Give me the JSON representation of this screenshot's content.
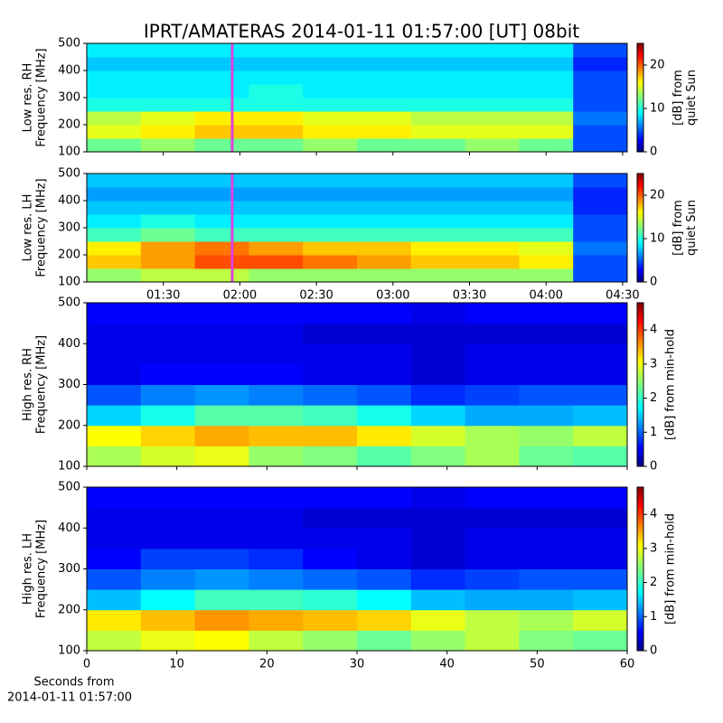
{
  "chart_data": [
    {
      "type": "heatmap",
      "title": "IPRT/AMATERAS 2014-01-11 01:57:00 [UT]   08bit",
      "ylabel": [
        "Low res. RH",
        "Frequency [MHz]"
      ],
      "ylim": [
        100,
        500
      ],
      "yticks": [
        100,
        200,
        300,
        400,
        500
      ],
      "xlim": [
        60,
        271.8
      ],
      "colormap": "jet",
      "clim": [
        0,
        25
      ],
      "cticks": [
        0,
        10,
        20
      ],
      "clabel": [
        "[dB] from",
        "quiet Sun"
      ],
      "marker_x": 117,
      "marker_color": "#e040e0",
      "z": [
        [
          12,
          13,
          12,
          12,
          13,
          12,
          12,
          13,
          12,
          5
        ],
        [
          15,
          16,
          17,
          17,
          16,
          16,
          15,
          15,
          15,
          5
        ],
        [
          14,
          15,
          16,
          16,
          15,
          15,
          14,
          14,
          14,
          6
        ],
        [
          10,
          10,
          10,
          10,
          10,
          10,
          10,
          10,
          10,
          5
        ],
        [
          9,
          9,
          9,
          10,
          9,
          9,
          9,
          9,
          9,
          5
        ],
        [
          9,
          9,
          9,
          9,
          9,
          9,
          9,
          9,
          9,
          5
        ],
        [
          8,
          8,
          8,
          8,
          8,
          8,
          8,
          8,
          8,
          4
        ],
        [
          9,
          9,
          9,
          9,
          9,
          9,
          9,
          9,
          9,
          5
        ]
      ]
    },
    {
      "type": "heatmap",
      "ylabel": [
        "Low res. LH",
        "Frequency [MHz]"
      ],
      "ylim": [
        100,
        500
      ],
      "yticks": [
        100,
        200,
        300,
        400,
        500
      ],
      "xlim": [
        60,
        271.8
      ],
      "xticks": [
        {
          "value": 90,
          "label": "01:30"
        },
        {
          "value": 120,
          "label": "02:00"
        },
        {
          "value": 150,
          "label": "02:30"
        },
        {
          "value": 180,
          "label": "03:00"
        },
        {
          "value": 210,
          "label": "03:30"
        },
        {
          "value": 240,
          "label": "04:00"
        },
        {
          "value": 270,
          "label": "04:30"
        }
      ],
      "colormap": "jet",
      "clim": [
        0,
        25
      ],
      "cticks": [
        0,
        10,
        20
      ],
      "clabel": [
        "[dB] from",
        "quiet Sun"
      ],
      "marker_x": 117,
      "marker_color": "#e040e0",
      "z": [
        [
          13,
          14,
          14,
          13,
          13,
          13,
          13,
          13,
          13,
          5
        ],
        [
          17,
          18,
          20,
          20,
          19,
          18,
          17,
          17,
          16,
          5
        ],
        [
          16,
          18,
          19,
          18,
          17,
          17,
          16,
          16,
          15,
          6
        ],
        [
          11,
          12,
          11,
          11,
          11,
          11,
          11,
          11,
          11,
          5
        ],
        [
          9,
          10,
          9,
          9,
          9,
          9,
          9,
          9,
          9,
          5
        ],
        [
          8,
          8,
          8,
          8,
          8,
          8,
          8,
          8,
          8,
          4
        ],
        [
          7,
          7,
          7,
          7,
          7,
          7,
          7,
          7,
          7,
          4
        ],
        [
          8,
          8,
          8,
          8,
          8,
          8,
          8,
          8,
          8,
          5
        ]
      ]
    },
    {
      "type": "heatmap",
      "ylabel": [
        "High res. RH",
        "Frequency [MHz]"
      ],
      "ylim": [
        100,
        500
      ],
      "yticks": [
        100,
        200,
        300,
        400,
        500
      ],
      "xlim": [
        0,
        60
      ],
      "colormap": "jet",
      "clim": [
        0,
        4.8
      ],
      "cticks": [
        0,
        1,
        2,
        3,
        4
      ],
      "clabel": [
        "[dB] from min-hold"
      ],
      "z": [
        [
          2.6,
          2.8,
          2.9,
          2.5,
          2.4,
          2.2,
          2.4,
          2.6,
          2.3,
          2.2
        ],
        [
          3.0,
          3.2,
          3.4,
          3.3,
          3.3,
          3.1,
          2.8,
          2.6,
          2.5,
          2.7
        ],
        [
          1.6,
          1.9,
          2.2,
          2.2,
          2.1,
          1.9,
          1.6,
          1.4,
          1.4,
          1.5
        ],
        [
          1.0,
          1.2,
          1.3,
          1.2,
          1.1,
          1.0,
          0.8,
          0.9,
          1.0,
          1.0
        ],
        [
          0.5,
          0.6,
          0.6,
          0.6,
          0.5,
          0.5,
          0.4,
          0.5,
          0.5,
          0.5
        ],
        [
          0.5,
          0.5,
          0.5,
          0.5,
          0.5,
          0.5,
          0.4,
          0.5,
          0.5,
          0.5
        ],
        [
          0.5,
          0.5,
          0.5,
          0.5,
          0.4,
          0.4,
          0.4,
          0.4,
          0.4,
          0.4
        ],
        [
          0.6,
          0.6,
          0.6,
          0.6,
          0.6,
          0.6,
          0.5,
          0.6,
          0.6,
          0.6
        ]
      ]
    },
    {
      "type": "heatmap",
      "ylabel": [
        "High res. LH",
        "Frequency [MHz]"
      ],
      "ylim": [
        100,
        500
      ],
      "yticks": [
        100,
        200,
        300,
        400,
        500
      ],
      "xlim": [
        0,
        60
      ],
      "xticks": [
        0,
        10,
        20,
        30,
        40,
        50,
        60
      ],
      "xlabel": [
        "Seconds from",
        "2014-01-11 01:57:00"
      ],
      "colormap": "jet",
      "clim": [
        0,
        4.8
      ],
      "cticks": [
        0,
        1,
        2,
        3,
        4
      ],
      "clabel": [
        "[dB] from min-hold"
      ],
      "z": [
        [
          2.7,
          2.9,
          3.0,
          2.7,
          2.5,
          2.3,
          2.5,
          2.7,
          2.4,
          2.3
        ],
        [
          3.1,
          3.3,
          3.5,
          3.4,
          3.3,
          3.2,
          2.9,
          2.7,
          2.6,
          2.8
        ],
        [
          1.5,
          1.8,
          2.1,
          2.1,
          2.0,
          1.8,
          1.5,
          1.4,
          1.4,
          1.5
        ],
        [
          1.0,
          1.2,
          1.3,
          1.2,
          1.1,
          1.0,
          0.8,
          0.9,
          1.0,
          1.0
        ],
        [
          0.6,
          0.9,
          0.9,
          0.8,
          0.6,
          0.5,
          0.4,
          0.5,
          0.5,
          0.5
        ],
        [
          0.5,
          0.5,
          0.5,
          0.5,
          0.5,
          0.5,
          0.4,
          0.5,
          0.5,
          0.5
        ],
        [
          0.5,
          0.5,
          0.5,
          0.5,
          0.4,
          0.4,
          0.4,
          0.4,
          0.4,
          0.4
        ],
        [
          0.6,
          0.6,
          0.6,
          0.6,
          0.6,
          0.6,
          0.5,
          0.6,
          0.6,
          0.6
        ]
      ]
    }
  ]
}
